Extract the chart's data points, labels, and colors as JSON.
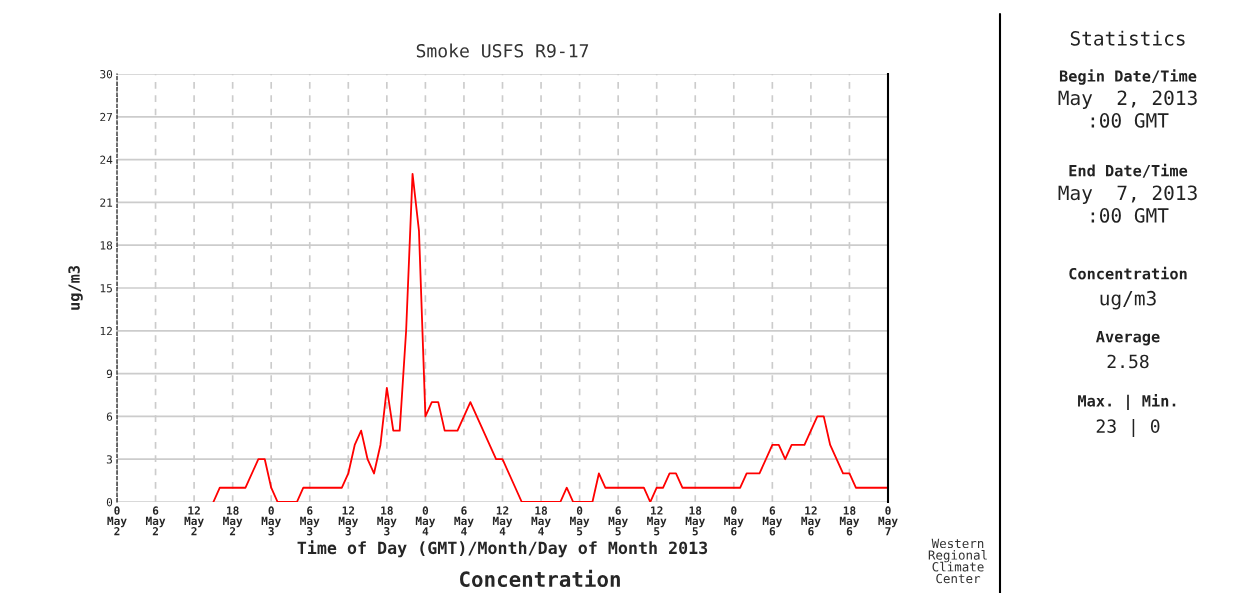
{
  "chart_data": {
    "type": "line",
    "title": "Smoke USFS R9-17",
    "xlabel": "Time of Day (GMT)/Month/Day of Month 2013",
    "ylabel": "ug/m3",
    "annotations": [
      "Concentration",
      "Western\nRegional\nClimate\nCenter",
      "Statistics",
      "Begin Date/Time",
      "May  2, 2013\n:00 GMT",
      "End Date/Time",
      "May  7, 2013\n:00 GMT",
      "Concentration",
      "ug/m3",
      "Average",
      "2.58",
      "Max. | Min.",
      "23 | 0"
    ],
    "series": [
      {
        "color": "#ff0000",
        "x": [
          "2013-05-02T15:00",
          "2013-05-02T16:00",
          "2013-05-02T20:00",
          "2013-05-02T22:00",
          "2013-05-02T23:00",
          "2013-05-03T00:00",
          "2013-05-03T01:00",
          "2013-05-03T04:00",
          "2013-05-03T05:00",
          "2013-05-03T11:00",
          "2013-05-03T12:00",
          "2013-05-03T13:00",
          "2013-05-03T14:00",
          "2013-05-03T15:00",
          "2013-05-03T16:00",
          "2013-05-03T17:00",
          "2013-05-03T18:00",
          "2013-05-03T19:00",
          "2013-05-03T20:00",
          "2013-05-03T21:00",
          "2013-05-03T22:00",
          "2013-05-03T23:00",
          "2013-05-04T00:00",
          "2013-05-04T01:00",
          "2013-05-04T02:00",
          "2013-05-04T03:00",
          "2013-05-04T05:00",
          "2013-05-04T07:00",
          "2013-05-04T11:00",
          "2013-05-04T12:00",
          "2013-05-04T15:00",
          "2013-05-04T21:00",
          "2013-05-04T22:00",
          "2013-05-04T23:00",
          "2013-05-05T02:00",
          "2013-05-05T03:00",
          "2013-05-05T04:00",
          "2013-05-05T10:00",
          "2013-05-05T11:00",
          "2013-05-05T12:00",
          "2013-05-05T13:00",
          "2013-05-05T14:00",
          "2013-05-05T15:00",
          "2013-05-05T16:00",
          "2013-05-06T01:00",
          "2013-05-06T02:00",
          "2013-05-06T04:00",
          "2013-05-06T06:00",
          "2013-05-06T07:00",
          "2013-05-06T08:00",
          "2013-05-06T09:00",
          "2013-05-06T11:00",
          "2013-05-06T13:00",
          "2013-05-06T14:00",
          "2013-05-06T15:00",
          "2013-05-06T16:00",
          "2013-05-06T17:00",
          "2013-05-06T18:00",
          "2013-05-06T19:00",
          "2013-05-07T00:00"
        ],
        "values": [
          0,
          1,
          1,
          3,
          3,
          1,
          0,
          0,
          1,
          1,
          2,
          4,
          5,
          3,
          2,
          4,
          8,
          5,
          5,
          12,
          23,
          19,
          6,
          7,
          7,
          5,
          5,
          7,
          3,
          3,
          0,
          0,
          1,
          0,
          0,
          2,
          1,
          1,
          0,
          1,
          1,
          2,
          2,
          1,
          1,
          2,
          2,
          4,
          4,
          3,
          4,
          4,
          6,
          6,
          4,
          3,
          2,
          2,
          1,
          1
        ]
      }
    ],
    "xlim": [
      "2013-05-02T00:00",
      "2013-05-07T00:00"
    ],
    "ylim": [
      0,
      30
    ],
    "xticks": [
      {
        "value": "2013-05-02T00:00",
        "label": "0\nMay\n2"
      },
      {
        "value": "2013-05-02T06:00",
        "label": "6\nMay\n2"
      },
      {
        "value": "2013-05-02T12:00",
        "label": "12\nMay\n2"
      },
      {
        "value": "2013-05-02T18:00",
        "label": "18\nMay\n2"
      },
      {
        "value": "2013-05-03T00:00",
        "label": "0\nMay\n3"
      },
      {
        "value": "2013-05-03T06:00",
        "label": "6\nMay\n3"
      },
      {
        "value": "2013-05-03T12:00",
        "label": "12\nMay\n3"
      },
      {
        "value": "2013-05-03T18:00",
        "label": "18\nMay\n3"
      },
      {
        "value": "2013-05-04T00:00",
        "label": "0\nMay\n4"
      },
      {
        "value": "2013-05-04T06:00",
        "label": "6\nMay\n4"
      },
      {
        "value": "2013-05-04T12:00",
        "label": "12\nMay\n4"
      },
      {
        "value": "2013-05-04T18:00",
        "label": "18\nMay\n4"
      },
      {
        "value": "2013-05-05T00:00",
        "label": "0\nMay\n5"
      },
      {
        "value": "2013-05-05T06:00",
        "label": "6\nMay\n5"
      },
      {
        "value": "2013-05-05T12:00",
        "label": "12\nMay\n5"
      },
      {
        "value": "2013-05-05T18:00",
        "label": "18\nMay\n5"
      },
      {
        "value": "2013-05-06T00:00",
        "label": "0\nMay\n6"
      },
      {
        "value": "2013-05-06T06:00",
        "label": "6\nMay\n6"
      },
      {
        "value": "2013-05-06T12:00",
        "label": "12\nMay\n6"
      },
      {
        "value": "2013-05-06T18:00",
        "label": "18\nMay\n6"
      },
      {
        "value": "2013-05-07T00:00",
        "label": "0\nMay\n7"
      }
    ],
    "yticks": [
      0,
      3,
      6,
      9,
      12,
      15,
      18,
      21,
      24,
      27,
      30
    ],
    "grid": true,
    "legend": false,
    "marker": "none",
    "line_style": "solid"
  }
}
